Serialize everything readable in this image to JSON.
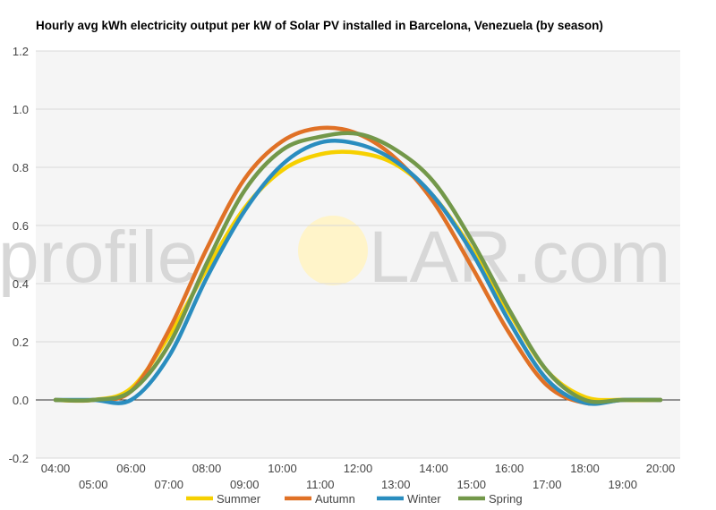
{
  "chart_data": {
    "type": "line",
    "title": "Hourly avg kWh electricity output per kW of Solar PV installed in Barcelona, Venezuela (by season)",
    "xlabel": "",
    "ylabel": "",
    "ylim": [
      -0.2,
      1.2
    ],
    "yticks": [
      "-0.2",
      "0.0",
      "0.2",
      "0.4",
      "0.6",
      "0.8",
      "1.0",
      "1.2"
    ],
    "x": [
      "04:00",
      "05:00",
      "06:00",
      "07:00",
      "08:00",
      "09:00",
      "10:00",
      "11:00",
      "12:00",
      "13:00",
      "14:00",
      "15:00",
      "16:00",
      "17:00",
      "18:00",
      "19:00",
      "20:00"
    ],
    "grid": true,
    "legend_position": "bottom",
    "series": [
      {
        "name": "Summer",
        "color": "#f6d000",
        "values": [
          0.0,
          0.0,
          0.04,
          0.22,
          0.45,
          0.66,
          0.79,
          0.845,
          0.85,
          0.81,
          0.7,
          0.52,
          0.3,
          0.1,
          0.01,
          0.0,
          0.0
        ]
      },
      {
        "name": "Autumn",
        "color": "#e07126",
        "values": [
          0.0,
          0.0,
          0.03,
          0.24,
          0.52,
          0.76,
          0.89,
          0.935,
          0.915,
          0.83,
          0.68,
          0.46,
          0.23,
          0.05,
          -0.01,
          0.0,
          0.0
        ]
      },
      {
        "name": "Winter",
        "color": "#2a8dbf",
        "values": [
          0.0,
          0.0,
          0.0,
          0.15,
          0.42,
          0.65,
          0.81,
          0.885,
          0.88,
          0.82,
          0.7,
          0.51,
          0.27,
          0.07,
          -0.01,
          0.0,
          0.0
        ]
      },
      {
        "name": "Spring",
        "color": "#73984a",
        "values": [
          0.0,
          0.0,
          0.03,
          0.19,
          0.47,
          0.72,
          0.86,
          0.905,
          0.915,
          0.86,
          0.75,
          0.55,
          0.31,
          0.1,
          0.0,
          0.0,
          0.0
        ]
      }
    ]
  },
  "watermark": {
    "text_left": "profile",
    "text_right": "LAR.com",
    "sun_color": "#fff4c9"
  }
}
